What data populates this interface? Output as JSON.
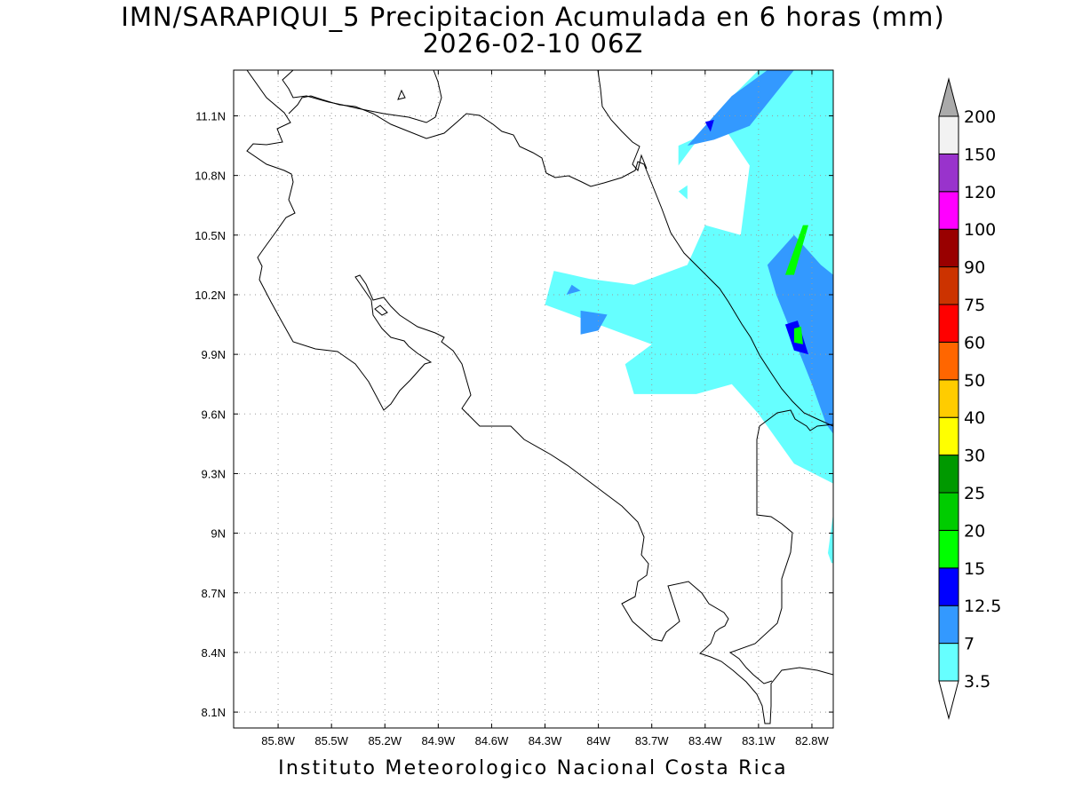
{
  "title": {
    "line1": "IMN/SARAPIQUI_5 Precipitacion Acumulada en 6 horas (mm)",
    "line2": "2026-02-10 06Z"
  },
  "footer": "Instituto Meteorologico Nacional Costa Rica",
  "map": {
    "lon_range": [
      -86.05,
      -82.68
    ],
    "lat_range": [
      8.02,
      11.33
    ],
    "lon_ticks": [
      {
        "v": -85.8,
        "label": "85.8W"
      },
      {
        "v": -85.5,
        "label": "85.5W"
      },
      {
        "v": -85.2,
        "label": "85.2W"
      },
      {
        "v": -84.9,
        "label": "84.9W"
      },
      {
        "v": -84.6,
        "label": "84.6W"
      },
      {
        "v": -84.3,
        "label": "84.3W"
      },
      {
        "v": -84.0,
        "label": "84W"
      },
      {
        "v": -83.7,
        "label": "83.7W"
      },
      {
        "v": -83.4,
        "label": "83.4W"
      },
      {
        "v": -83.1,
        "label": "83.1W"
      },
      {
        "v": -82.8,
        "label": "82.8W"
      }
    ],
    "lat_ticks": [
      {
        "v": 11.1,
        "label": "11.1N"
      },
      {
        "v": 10.8,
        "label": "10.8N"
      },
      {
        "v": 10.5,
        "label": "10.5N"
      },
      {
        "v": 10.2,
        "label": "10.2N"
      },
      {
        "v": 9.9,
        "label": "9.9N"
      },
      {
        "v": 9.6,
        "label": "9.6N"
      },
      {
        "v": 9.3,
        "label": "9.3N"
      },
      {
        "v": 9.0,
        "label": "9N"
      },
      {
        "v": 8.7,
        "label": "8.7N"
      },
      {
        "v": 8.4,
        "label": "8.4N"
      },
      {
        "v": 8.1,
        "label": "8.1N"
      }
    ],
    "grid": "dotted"
  },
  "colorbar": {
    "orientation": "vertical",
    "labels": [
      "3.5",
      "7",
      "12.5",
      "15",
      "20",
      "25",
      "30",
      "40",
      "50",
      "60",
      "75",
      "90",
      "100",
      "120",
      "150",
      "200"
    ],
    "colors": [
      "#66ffff",
      "#3399ff",
      "#0000ff",
      "#00ff00",
      "#00cc00",
      "#009900",
      "#ffff00",
      "#ffcc00",
      "#ff6600",
      "#ff0000",
      "#cc3300",
      "#990000",
      "#ff00ff",
      "#9933cc",
      "#f2f2f2"
    ],
    "below_color": "#ffffff",
    "above_color": "#aaaaaa"
  },
  "precip_areas": [
    {
      "level": "3.5",
      "color": "#66ffff",
      "points": [
        [
          -83.55,
          10.85
        ],
        [
          -83.3,
          11.15
        ],
        [
          -83.1,
          11.33
        ],
        [
          -82.68,
          11.33
        ],
        [
          -82.68,
          9.25
        ],
        [
          -82.9,
          9.35
        ],
        [
          -83.1,
          9.6
        ],
        [
          -83.25,
          9.75
        ],
        [
          -83.45,
          9.7
        ],
        [
          -83.8,
          9.7
        ],
        [
          -83.85,
          9.85
        ],
        [
          -83.7,
          9.95
        ],
        [
          -84.0,
          10.05
        ],
        [
          -84.3,
          10.15
        ],
        [
          -84.25,
          10.32
        ],
        [
          -84.05,
          10.28
        ],
        [
          -83.8,
          10.25
        ],
        [
          -83.5,
          10.35
        ],
        [
          -83.4,
          10.55
        ],
        [
          -83.2,
          10.5
        ],
        [
          -83.15,
          10.85
        ],
        [
          -83.3,
          11.05
        ],
        [
          -83.55,
          10.95
        ]
      ]
    },
    {
      "level": "3.5",
      "color": "#66ffff",
      "points": [
        [
          -82.68,
          9.1
        ],
        [
          -82.71,
          8.9
        ],
        [
          -82.69,
          8.85
        ],
        [
          -82.68,
          8.85
        ]
      ]
    },
    {
      "level": "3.5",
      "color": "#66ffff",
      "points": [
        [
          -83.55,
          10.72
        ],
        [
          -83.5,
          10.75
        ],
        [
          -83.5,
          10.68
        ]
      ]
    },
    {
      "level": "7",
      "color": "#3399ff",
      "points": [
        [
          -83.5,
          10.95
        ],
        [
          -83.25,
          11.2
        ],
        [
          -83.05,
          11.33
        ],
        [
          -82.9,
          11.33
        ],
        [
          -83.15,
          11.05
        ],
        [
          -83.35,
          10.98
        ]
      ]
    },
    {
      "level": "7",
      "color": "#3399ff",
      "points": [
        [
          -82.68,
          10.3
        ],
        [
          -82.75,
          10.35
        ],
        [
          -82.9,
          10.5
        ],
        [
          -83.05,
          10.35
        ],
        [
          -83.0,
          10.2
        ],
        [
          -82.8,
          9.75
        ],
        [
          -82.72,
          9.55
        ],
        [
          -82.68,
          9.5
        ]
      ]
    },
    {
      "level": "7",
      "color": "#3399ff",
      "points": [
        [
          -84.1,
          10.12
        ],
        [
          -83.95,
          10.1
        ],
        [
          -84.0,
          10.02
        ],
        [
          -84.1,
          10.0
        ]
      ]
    },
    {
      "level": "7",
      "color": "#3399ff",
      "points": [
        [
          -84.15,
          10.25
        ],
        [
          -84.1,
          10.22
        ],
        [
          -84.18,
          10.2
        ]
      ]
    },
    {
      "level": "12.5",
      "color": "#0000ff",
      "points": [
        [
          -83.4,
          11.07
        ],
        [
          -83.35,
          11.08
        ],
        [
          -83.37,
          11.02
        ]
      ]
    },
    {
      "level": "12.5",
      "color": "#0000ff",
      "points": [
        [
          -82.95,
          10.05
        ],
        [
          -82.88,
          10.07
        ],
        [
          -82.82,
          9.9
        ],
        [
          -82.9,
          9.92
        ]
      ]
    },
    {
      "level": "15",
      "color": "#00ff00",
      "points": [
        [
          -82.95,
          10.3
        ],
        [
          -82.85,
          10.55
        ],
        [
          -82.82,
          10.55
        ],
        [
          -82.9,
          10.3
        ]
      ]
    },
    {
      "level": "15",
      "color": "#00ff00",
      "points": [
        [
          -82.9,
          10.03
        ],
        [
          -82.86,
          10.04
        ],
        [
          -82.85,
          9.95
        ],
        [
          -82.9,
          9.96
        ]
      ]
    }
  ]
}
